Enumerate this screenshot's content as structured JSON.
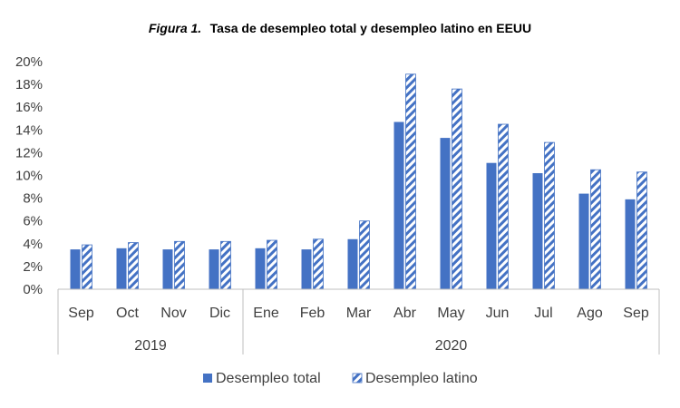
{
  "chart_data": {
    "type": "bar",
    "title_prefix": "Figura 1.",
    "title": "Tasa de desempleo total y desempleo latino en EEUU",
    "categories": [
      "Sep",
      "Oct",
      "Nov",
      "Dic",
      "Ene",
      "Feb",
      "Mar",
      "Abr",
      "May",
      "Jun",
      "Jul",
      "Ago",
      "Sep"
    ],
    "groups": [
      {
        "label": "2019",
        "count": 4
      },
      {
        "label": "2020",
        "count": 9
      }
    ],
    "series": [
      {
        "name": "Desempleo total",
        "values": [
          3.5,
          3.6,
          3.5,
          3.5,
          3.6,
          3.5,
          4.4,
          14.7,
          13.3,
          11.1,
          10.2,
          8.4,
          7.9
        ],
        "color": "#4472c4",
        "pattern": "solid"
      },
      {
        "name": "Desempleo latino",
        "values": [
          3.9,
          4.1,
          4.2,
          4.2,
          4.3,
          4.4,
          6.0,
          18.9,
          17.6,
          14.5,
          12.9,
          10.5,
          10.3
        ],
        "color": "#4472c4",
        "pattern": "diagonal-hatch"
      }
    ],
    "yticks": [
      "0%",
      "2%",
      "4%",
      "6%",
      "8%",
      "10%",
      "12%",
      "14%",
      "16%",
      "18%",
      "20%"
    ],
    "ylim": [
      0,
      20
    ],
    "legend_position": "bottom",
    "grid": false
  }
}
